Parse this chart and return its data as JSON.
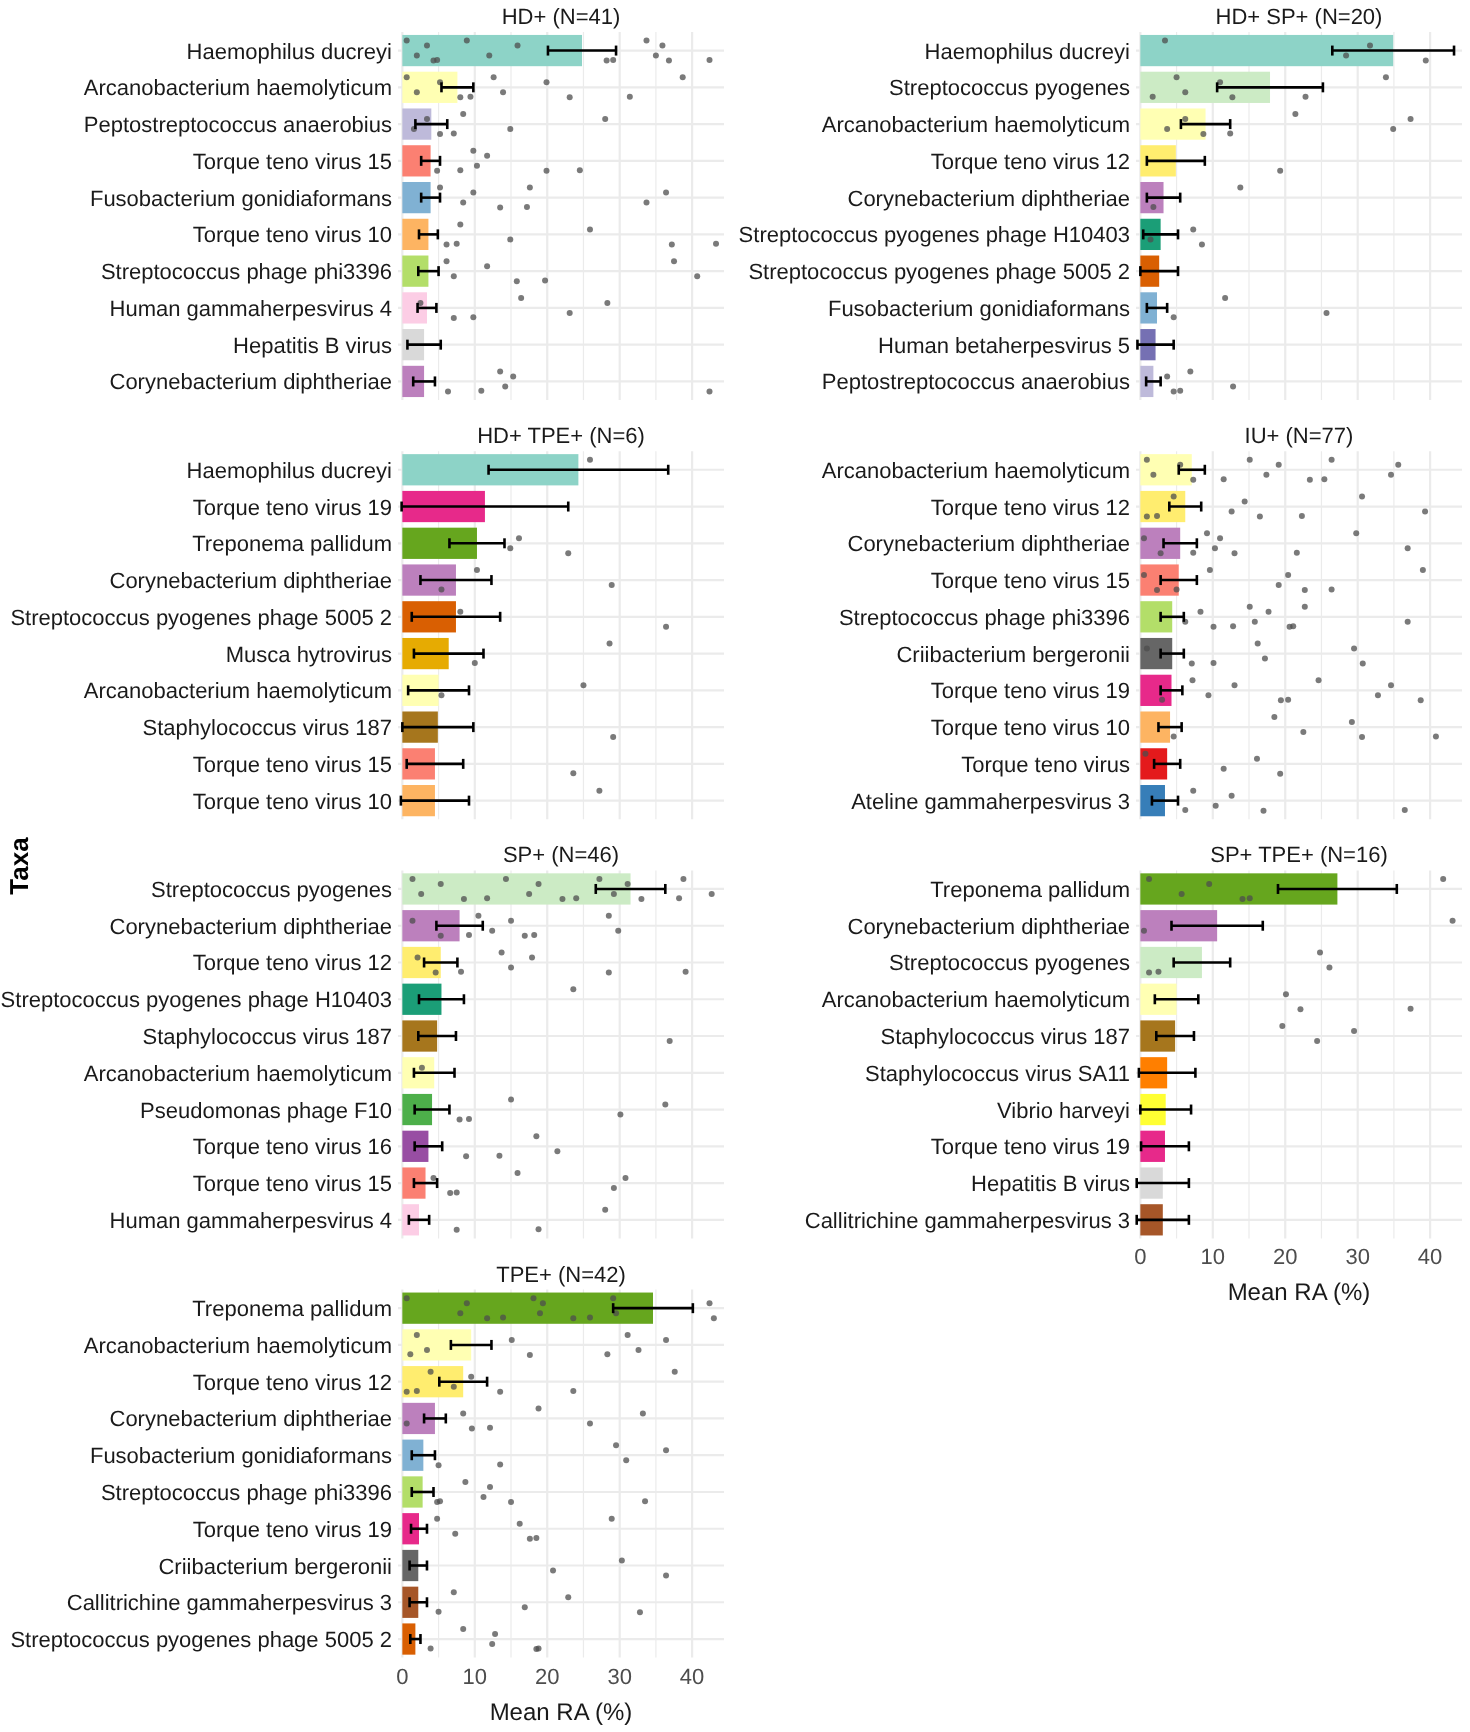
{
  "chart_data": [
    {
      "type": "bar",
      "orientation": "horizontal",
      "title": "HD+ (N=41)",
      "tick_labels": "y",
      "grid": true,
      "xlim": [
        -0.6,
        44.4
      ],
      "xticks": [
        0,
        {
          "value": 5,
          "label": null
        },
        10,
        {
          "value": 15,
          "label": null
        },
        20,
        {
          "value": 25,
          "label": null
        },
        30,
        {
          "value": 35,
          "label": null
        },
        40
      ],
      "categories": [
        "Haemophilus ducreyi",
        "Arcanobacterium haemolyticum",
        "Peptostreptococcus anaerobius",
        "Torque teno virus 15",
        "Fusobacterium gonidiaformans",
        "Torque teno virus 10",
        "Streptococcus phage phi3396",
        "Human gammaherpesvirus 4",
        "Hepatitis B virus",
        "Corynebacterium diphtheriae"
      ],
      "series": [
        {
          "type": "bar",
          "colors": [
            "#8dd3c7",
            "#ffffb3",
            "#bebada",
            "#fb8072",
            "#80b1d3",
            "#fdb462",
            "#b3de69",
            "#fccde5",
            "#d9d9d9",
            "#bc80bd"
          ],
          "values": [
            24.8,
            7.6,
            4.0,
            3.9,
            3.9,
            3.6,
            3.6,
            3.4,
            3.0,
            3.0
          ],
          "errors": [
            4.7,
            2.2,
            2.2,
            1.3,
            1.3,
            1.3,
            1.4,
            1.3,
            2.3,
            1.5
          ]
        },
        {
          "type": "scatter",
          "color": "#4d4d4d",
          "x": [
            "Haemophilus ducreyi",
            "Haemophilus ducreyi",
            "Haemophilus ducreyi",
            "Haemophilus ducreyi",
            "Haemophilus ducreyi",
            "Haemophilus ducreyi",
            "Haemophilus ducreyi",
            "Haemophilus ducreyi",
            "Haemophilus ducreyi",
            "Haemophilus ducreyi",
            "Haemophilus ducreyi",
            "Haemophilus ducreyi",
            "Haemophilus ducreyi",
            "Haemophilus ducreyi",
            "Haemophilus ducreyi",
            "Arcanobacterium haemolyticum",
            "Arcanobacterium haemolyticum",
            "Arcanobacterium haemolyticum",
            "Arcanobacterium haemolyticum",
            "Arcanobacterium haemolyticum",
            "Arcanobacterium haemolyticum",
            "Arcanobacterium haemolyticum",
            "Arcanobacterium haemolyticum",
            "Arcanobacterium haemolyticum",
            "Arcanobacterium haemolyticum",
            "Arcanobacterium haemolyticum",
            "Peptostreptococcus anaerobius",
            "Peptostreptococcus anaerobius",
            "Peptostreptococcus anaerobius",
            "Peptostreptococcus anaerobius",
            "Peptostreptococcus anaerobius",
            "Peptostreptococcus anaerobius",
            "Peptostreptococcus anaerobius",
            "Torque teno virus 15",
            "Torque teno virus 15",
            "Torque teno virus 15",
            "Torque teno virus 15",
            "Torque teno virus 15",
            "Torque teno virus 15",
            "Torque teno virus 15",
            "Fusobacterium gonidiaformans",
            "Fusobacterium gonidiaformans",
            "Fusobacterium gonidiaformans",
            "Fusobacterium gonidiaformans",
            "Fusobacterium gonidiaformans",
            "Fusobacterium gonidiaformans",
            "Fusobacterium gonidiaformans",
            "Fusobacterium gonidiaformans",
            "Torque teno virus 10",
            "Torque teno virus 10",
            "Torque teno virus 10",
            "Torque teno virus 10",
            "Torque teno virus 10",
            "Torque teno virus 10",
            "Torque teno virus 10",
            "Streptococcus phage phi3396",
            "Streptococcus phage phi3396",
            "Streptococcus phage phi3396",
            "Streptococcus phage phi3396",
            "Streptococcus phage phi3396",
            "Streptococcus phage phi3396",
            "Streptococcus phage phi3396",
            "Human gammaherpesvirus 4",
            "Human gammaherpesvirus 4",
            "Human gammaherpesvirus 4",
            "Human gammaherpesvirus 4",
            "Human gammaherpesvirus 4",
            "Human gammaherpesvirus 4",
            "Corynebacterium diphtheriae",
            "Corynebacterium diphtheriae",
            "Corynebacterium diphtheriae",
            "Corynebacterium diphtheriae",
            "Corynebacterium diphtheriae",
            "Corynebacterium diphtheriae"
          ],
          "values": [
            0.6,
            2,
            3.4,
            4.3,
            4.8,
            8.9,
            12,
            15.9,
            28.2,
            29.1,
            33.7,
            35,
            35.9,
            36.8,
            42.4,
            0.6,
            2,
            5.2,
            8,
            9.4,
            12.6,
            13.9,
            19.9,
            23.1,
            31.4,
            38.7,
            1.6,
            3.4,
            5.2,
            7.1,
            8.4,
            14.9,
            28,
            4.8,
            8,
            9.8,
            10.3,
            11.7,
            19.9,
            24.5,
            5.2,
            8.4,
            9.8,
            13.5,
            17.2,
            17.6,
            33.7,
            36.4,
            6.1,
            7.5,
            8,
            14.9,
            25.9,
            37.2,
            43.3,
            6.1,
            7.1,
            11.7,
            15.8,
            19.7,
            37.5,
            40.7,
            2.5,
            7.1,
            9.8,
            16.4,
            23.1,
            28.3,
            6.3,
            10.9,
            13.5,
            14.2,
            15.3,
            42.4
          ]
        }
      ]
    },
    {
      "type": "bar",
      "orientation": "horizontal",
      "title": "HD+ SP+ (N=20)",
      "tick_labels": "y",
      "grid": true,
      "xlim": [
        -0.6,
        44.4
      ],
      "xticks": [
        0,
        {
          "value": 5,
          "label": null
        },
        10,
        {
          "value": 15,
          "label": null
        },
        20,
        {
          "value": 25,
          "label": null
        },
        30,
        {
          "value": 35,
          "label": null
        },
        40
      ],
      "categories": [
        "Haemophilus ducreyi",
        "Streptococcus pyogenes",
        "Arcanobacterium haemolyticum",
        "Torque teno virus 12",
        "Corynebacterium diphtheriae",
        "Streptococcus pyogenes phage H10403",
        "Streptococcus pyogenes phage 5005 2",
        "Fusobacterium gonidiaformans",
        "Human betaherpesvirus 5",
        "Peptostreptococcus anaerobius"
      ],
      "series": [
        {
          "type": "bar",
          "colors": [
            "#8dd3c7",
            "#ccebc5",
            "#ffffb3",
            "#ffed6f",
            "#bc80bd",
            "#1b9e77",
            "#d95f02",
            "#80b1d3",
            "#7570b3",
            "#bebada"
          ],
          "values": [
            34.9,
            17.9,
            9.0,
            4.9,
            3.2,
            2.8,
            2.6,
            2.3,
            2.1,
            1.8
          ],
          "errors": [
            8.4,
            7.3,
            3.4,
            4.0,
            2.3,
            2.4,
            2.6,
            1.4,
            2.5,
            1.0
          ]
        },
        {
          "type": "scatter",
          "color": "#4d4d4d",
          "x": [
            "Haemophilus ducreyi",
            "Haemophilus ducreyi",
            "Haemophilus ducreyi",
            "Haemophilus ducreyi",
            "Streptococcus pyogenes",
            "Streptococcus pyogenes",
            "Streptococcus pyogenes",
            "Streptococcus pyogenes",
            "Streptococcus pyogenes",
            "Streptococcus pyogenes",
            "Streptococcus pyogenes",
            "Arcanobacterium haemolyticum",
            "Arcanobacterium haemolyticum",
            "Arcanobacterium haemolyticum",
            "Arcanobacterium haemolyticum",
            "Arcanobacterium haemolyticum",
            "Arcanobacterium haemolyticum",
            "Arcanobacterium haemolyticum",
            "Torque teno virus 12",
            "Corynebacterium diphtheriae",
            "Corynebacterium diphtheriae",
            "Streptococcus pyogenes phage H10403",
            "Streptococcus pyogenes phage H10403",
            "Streptococcus pyogenes phage H10403",
            "Fusobacterium gonidiaformans",
            "Fusobacterium gonidiaformans",
            "Fusobacterium gonidiaformans",
            "Peptostreptococcus anaerobius",
            "Peptostreptococcus anaerobius",
            "Peptostreptococcus anaerobius",
            "Peptostreptococcus anaerobius",
            "Peptostreptococcus anaerobius"
          ],
          "values": [
            3.4,
            28.4,
            31.7,
            39.4,
            1.7,
            5,
            6.2,
            11,
            12.7,
            22.8,
            33.9,
            3.7,
            6.2,
            8.7,
            12.4,
            21.4,
            34.9,
            37.3,
            19.3,
            1.8,
            13.8,
            1.4,
            7.3,
            8.5,
            4.6,
            11.7,
            25.7,
            3.7,
            4.6,
            5.5,
            6.9,
            12.8
          ]
        }
      ]
    },
    {
      "type": "bar",
      "orientation": "horizontal",
      "title": "HD+ TPE+ (N=6)",
      "tick_labels": "y",
      "grid": true,
      "xlim": [
        -0.6,
        44.4
      ],
      "xticks": [
        0,
        {
          "value": 5,
          "label": null
        },
        10,
        {
          "value": 15,
          "label": null
        },
        20,
        {
          "value": 25,
          "label": null
        },
        30,
        {
          "value": 35,
          "label": null
        },
        40
      ],
      "categories": [
        "Haemophilus ducreyi",
        "Torque teno virus 19",
        "Treponema pallidum",
        "Corynebacterium diphtheriae",
        "Streptococcus pyogenes phage 5005 2",
        "Musca hytrovirus",
        "Arcanobacterium haemolyticum",
        "Staphylococcus virus 187",
        "Torque teno virus 15",
        "Torque teno virus 10"
      ],
      "series": [
        {
          "type": "bar",
          "colors": [
            "#8dd3c7",
            "#e7298a",
            "#66a61e",
            "#bc80bd",
            "#d95f02",
            "#e6ab02",
            "#ffffb3",
            "#a6761d",
            "#fb8072",
            "#fdb462"
          ],
          "values": [
            24.3,
            11.4,
            10.3,
            7.4,
            7.4,
            6.4,
            5.0,
            4.9,
            4.5,
            4.5
          ],
          "errors": [
            12.4,
            11.5,
            3.8,
            4.9,
            6.1,
            4.8,
            4.2,
            4.9,
            3.9,
            4.7
          ]
        },
        {
          "type": "scatter",
          "color": "#4d4d4d",
          "x": [
            "Haemophilus ducreyi",
            "Treponema pallidum",
            "Treponema pallidum",
            "Treponema pallidum",
            "Corynebacterium diphtheriae",
            "Corynebacterium diphtheriae",
            "Corynebacterium diphtheriae",
            "Streptococcus pyogenes phage 5005 2",
            "Streptococcus pyogenes phage 5005 2",
            "Musca hytrovirus",
            "Musca hytrovirus",
            "Arcanobacterium haemolyticum",
            "Arcanobacterium haemolyticum",
            "Staphylococcus virus 187",
            "Torque teno virus 15",
            "Torque teno virus 10"
          ],
          "values": [
            25.9,
            14.9,
            16.1,
            22.9,
            5.4,
            10.3,
            28.9,
            8,
            36.4,
            10,
            28.6,
            5.4,
            25,
            29.1,
            23.6,
            27.2
          ]
        }
      ]
    },
    {
      "type": "bar",
      "orientation": "horizontal",
      "title": "IU+ (N=77)",
      "tick_labels": "y",
      "grid": true,
      "xlim": [
        -0.6,
        44.4
      ],
      "xticks": [
        0,
        {
          "value": 5,
          "label": null
        },
        10,
        {
          "value": 15,
          "label": null
        },
        20,
        {
          "value": 25,
          "label": null
        },
        30,
        {
          "value": 35,
          "label": null
        },
        40
      ],
      "categories": [
        "Arcanobacterium haemolyticum",
        "Torque teno virus 12",
        "Corynebacterium diphtheriae",
        "Torque teno virus 15",
        "Streptococcus phage phi3396",
        "Criibacterium bergeronii",
        "Torque teno virus 19",
        "Torque teno virus 10",
        "Torque teno virus",
        "Ateline gammaherpesvirus 3"
      ],
      "series": [
        {
          "type": "bar",
          "colors": [
            "#ffffb3",
            "#ffed6f",
            "#bc80bd",
            "#fb8072",
            "#b3de69",
            "#666666",
            "#e7298a",
            "#fdb462",
            "#e41a1c",
            "#377eb8"
          ],
          "values": [
            7.1,
            6.2,
            5.5,
            5.3,
            4.4,
            4.4,
            4.3,
            4.1,
            3.7,
            3.4
          ],
          "errors": [
            1.8,
            2.2,
            2.3,
            2.5,
            1.6,
            1.6,
            1.5,
            1.6,
            1.8,
            1.8
          ]
        },
        {
          "type": "scatter",
          "color": "#4d4d4d",
          "x": [
            "Arcanobacterium haemolyticum",
            "Arcanobacterium haemolyticum",
            "Arcanobacterium haemolyticum",
            "Arcanobacterium haemolyticum",
            "Arcanobacterium haemolyticum",
            "Arcanobacterium haemolyticum",
            "Arcanobacterium haemolyticum",
            "Arcanobacterium haemolyticum",
            "Arcanobacterium haemolyticum",
            "Arcanobacterium haemolyticum",
            "Arcanobacterium haemolyticum",
            "Arcanobacterium haemolyticum",
            "Arcanobacterium haemolyticum",
            "Torque teno virus 12",
            "Torque teno virus 12",
            "Torque teno virus 12",
            "Torque teno virus 12",
            "Torque teno virus 12",
            "Torque teno virus 12",
            "Torque teno virus 12",
            "Torque teno virus 12",
            "Torque teno virus 12",
            "Corynebacterium diphtheriae",
            "Corynebacterium diphtheriae",
            "Corynebacterium diphtheriae",
            "Corynebacterium diphtheriae",
            "Corynebacterium diphtheriae",
            "Corynebacterium diphtheriae",
            "Corynebacterium diphtheriae",
            "Corynebacterium diphtheriae",
            "Corynebacterium diphtheriae",
            "Corynebacterium diphtheriae",
            "Torque teno virus 15",
            "Torque teno virus 15",
            "Torque teno virus 15",
            "Torque teno virus 15",
            "Torque teno virus 15",
            "Torque teno virus 15",
            "Torque teno virus 15",
            "Torque teno virus 15",
            "Torque teno virus 15",
            "Streptococcus phage phi3396",
            "Streptococcus phage phi3396",
            "Streptococcus phage phi3396",
            "Streptococcus phage phi3396",
            "Streptococcus phage phi3396",
            "Streptococcus phage phi3396",
            "Streptococcus phage phi3396",
            "Streptococcus phage phi3396",
            "Streptococcus phage phi3396",
            "Streptococcus phage phi3396",
            "Streptococcus phage phi3396",
            "Criibacterium bergeronii",
            "Criibacterium bergeronii",
            "Criibacterium bergeronii",
            "Criibacterium bergeronii",
            "Criibacterium bergeronii",
            "Criibacterium bergeronii",
            "Criibacterium bergeronii",
            "Torque teno virus 19",
            "Torque teno virus 19",
            "Torque teno virus 19",
            "Torque teno virus 19",
            "Torque teno virus 19",
            "Torque teno virus 19",
            "Torque teno virus 19",
            "Torque teno virus 19",
            "Torque teno virus 19",
            "Torque teno virus 19",
            "Torque teno virus 10",
            "Torque teno virus 10",
            "Torque teno virus 10",
            "Torque teno virus 10",
            "Torque teno virus 10",
            "Torque teno virus 10",
            "Torque teno virus",
            "Torque teno virus",
            "Torque teno virus",
            "Torque teno virus",
            "Ateline gammaherpesvirus 3",
            "Ateline gammaherpesvirus 3",
            "Ateline gammaherpesvirus 3",
            "Ateline gammaherpesvirus 3",
            "Ateline gammaherpesvirus 3",
            "Ateline gammaherpesvirus 3"
          ],
          "values": [
            0.9,
            1.8,
            5.5,
            7.3,
            11.5,
            15.1,
            17.4,
            19.1,
            23.4,
            25.4,
            26.4,
            34.6,
            35.6,
            0.9,
            2.3,
            4.6,
            12.6,
            14.4,
            16.5,
            22.3,
            30.6,
            39.3,
            0.5,
            2.8,
            7.3,
            9.2,
            10.3,
            11,
            13,
            21.6,
            29.8,
            36.9,
            0.5,
            2.3,
            5,
            9.6,
            19.1,
            20.4,
            22.7,
            26.4,
            39,
            6.2,
            8.3,
            10.1,
            12.8,
            15.1,
            15.8,
            17.7,
            20.6,
            21.1,
            22.7,
            36.9,
            0.9,
            7.1,
            10.1,
            16.2,
            17.2,
            29.5,
            30.7,
            3,
            7.2,
            9.4,
            13,
            19.4,
            20.4,
            24.6,
            32.8,
            34.6,
            38.7,
            4.6,
            18.5,
            22.5,
            29.2,
            30.6,
            40.8,
            0.7,
            11.5,
            16.1,
            19.3,
            6.2,
            7.3,
            10.4,
            12.6,
            17,
            36.5
          ]
        }
      ]
    },
    {
      "type": "bar",
      "orientation": "horizontal",
      "title": "SP+ (N=46)",
      "ylabel": "Taxa",
      "tick_labels": "y",
      "grid": true,
      "xlim": [
        -0.6,
        44.4
      ],
      "xticks": [
        0,
        {
          "value": 5,
          "label": null
        },
        10,
        {
          "value": 15,
          "label": null
        },
        20,
        {
          "value": 25,
          "label": null
        },
        30,
        {
          "value": 35,
          "label": null
        },
        40
      ],
      "categories": [
        "Streptococcus pyogenes",
        "Corynebacterium diphtheriae",
        "Torque teno virus 12",
        "Streptococcus pyogenes phage H10403",
        "Staphylococcus virus 187",
        "Arcanobacterium haemolyticum",
        "Pseudomonas phage F10",
        "Torque teno virus 16",
        "Torque teno virus 15",
        "Human gammaherpesvirus 4"
      ],
      "series": [
        {
          "type": "bar",
          "colors": [
            "#ccebc5",
            "#bc80bd",
            "#ffed6f",
            "#1b9e77",
            "#a6761d",
            "#ffffb3",
            "#4daf4a",
            "#984ea3",
            "#fb8072",
            "#fccde5"
          ],
          "values": [
            31.5,
            7.9,
            5.3,
            5.4,
            4.8,
            4.4,
            4.1,
            3.6,
            3.2,
            2.3
          ],
          "errors": [
            4.8,
            3.2,
            2.3,
            3.1,
            2.6,
            2.8,
            2.4,
            1.9,
            1.6,
            1.4
          ]
        },
        {
          "type": "scatter",
          "color": "#4d4d4d",
          "x": [
            "Streptococcus pyogenes",
            "Streptococcus pyogenes",
            "Streptococcus pyogenes",
            "Streptococcus pyogenes",
            "Streptococcus pyogenes",
            "Streptococcus pyogenes",
            "Streptococcus pyogenes",
            "Streptococcus pyogenes",
            "Streptococcus pyogenes",
            "Streptococcus pyogenes",
            "Streptococcus pyogenes",
            "Streptococcus pyogenes",
            "Streptococcus pyogenes",
            "Streptococcus pyogenes",
            "Streptococcus pyogenes",
            "Streptococcus pyogenes",
            "Streptococcus pyogenes",
            "Corynebacterium diphtheriae",
            "Corynebacterium diphtheriae",
            "Corynebacterium diphtheriae",
            "Corynebacterium diphtheriae",
            "Corynebacterium diphtheriae",
            "Corynebacterium diphtheriae",
            "Corynebacterium diphtheriae",
            "Corynebacterium diphtheriae",
            "Corynebacterium diphtheriae",
            "Corynebacterium diphtheriae",
            "Torque teno virus 12",
            "Torque teno virus 12",
            "Torque teno virus 12",
            "Torque teno virus 12",
            "Torque teno virus 12",
            "Torque teno virus 12",
            "Torque teno virus 12",
            "Torque teno virus 12",
            "Streptococcus pyogenes phage H10403",
            "Staphylococcus virus 187",
            "Arcanobacterium haemolyticum",
            "Pseudomonas phage F10",
            "Pseudomonas phage F10",
            "Pseudomonas phage F10",
            "Pseudomonas phage F10",
            "Pseudomonas phage F10",
            "Torque teno virus 16",
            "Torque teno virus 16",
            "Torque teno virus 16",
            "Torque teno virus 16",
            "Torque teno virus 15",
            "Torque teno virus 15",
            "Torque teno virus 15",
            "Torque teno virus 15",
            "Torque teno virus 15",
            "Torque teno virus 15",
            "Human gammaherpesvirus 4",
            "Human gammaherpesvirus 4",
            "Human gammaherpesvirus 4"
          ],
          "values": [
            1.4,
            2.6,
            5.3,
            8.5,
            11.7,
            14.3,
            17.5,
            18.8,
            22.1,
            24,
            27.2,
            29.2,
            31.1,
            33,
            38.2,
            38.8,
            42.7,
            1.4,
            5.3,
            9.2,
            10.5,
            12.4,
            15,
            16.9,
            18.2,
            28.5,
            29.8,
            2.1,
            4.6,
            8.1,
            13.7,
            15,
            17.9,
            28.5,
            39.1,
            23.6,
            36.9,
            2.7,
            7.9,
            9.2,
            15,
            30.1,
            36.3,
            8.8,
            13.4,
            18.5,
            21.4,
            4.3,
            6.6,
            7.5,
            15.9,
            29.2,
            30.8,
            7.5,
            18.8,
            28
          ]
        }
      ]
    },
    {
      "type": "bar",
      "orientation": "horizontal",
      "title": "SP+ TPE+ (N=16)",
      "xlabel": "Mean RA (%)",
      "grid": true,
      "xlim": [
        -0.6,
        44.4
      ],
      "xticks": [
        0,
        {
          "value": 5,
          "label": null
        },
        10,
        {
          "value": 15,
          "label": null
        },
        20,
        {
          "value": 25,
          "label": null
        },
        30,
        {
          "value": 35,
          "label": null
        },
        40
      ],
      "categories": [
        "Treponema pallidum",
        "Corynebacterium diphtheriae",
        "Streptococcus pyogenes",
        "Arcanobacterium haemolyticum",
        "Staphylococcus virus 187",
        "Staphylococcus virus SA11",
        "Vibrio harveyi",
        "Torque teno virus 19",
        "Hepatitis B virus",
        "Callitrichine gammaherpesvirus 3"
      ],
      "series": [
        {
          "type": "bar",
          "colors": [
            "#66a61e",
            "#bc80bd",
            "#ccebc5",
            "#ffffb3",
            "#a6761d",
            "#ff7f00",
            "#ffff33",
            "#e7298a",
            "#d9d9d9",
            "#a65628"
          ],
          "values": [
            27.2,
            10.6,
            8.5,
            5.0,
            4.8,
            3.7,
            3.5,
            3.4,
            3.1,
            3.1
          ],
          "errors": [
            8.2,
            6.3,
            3.9,
            3.0,
            2.6,
            3.9,
            3.5,
            3.3,
            3.6,
            3.6
          ]
        },
        {
          "type": "scatter",
          "color": "#4d4d4d",
          "x": [
            "Treponema pallidum",
            "Treponema pallidum",
            "Treponema pallidum",
            "Treponema pallidum",
            "Treponema pallidum",
            "Treponema pallidum",
            "Corynebacterium diphtheriae",
            "Corynebacterium diphtheriae",
            "Streptococcus pyogenes",
            "Streptococcus pyogenes",
            "Streptococcus pyogenes",
            "Streptococcus pyogenes",
            "Arcanobacterium haemolyticum",
            "Arcanobacterium haemolyticum",
            "Arcanobacterium haemolyticum",
            "Staphylococcus virus 187",
            "Staphylococcus virus 187",
            "Staphylococcus virus 187"
          ],
          "values": [
            1.2,
            5.7,
            9.5,
            14.1,
            15.1,
            41.8,
            0.5,
            43.1,
            1.2,
            2.5,
            24.8,
            26.1,
            20.1,
            22.1,
            37.3,
            19.6,
            24.4,
            29.5
          ]
        }
      ]
    },
    {
      "type": "bar",
      "orientation": "horizontal",
      "title": "TPE+ (N=42)",
      "xlabel": "Mean RA (%)",
      "grid": true,
      "xlim": [
        -0.6,
        44.4
      ],
      "xticks": [
        0,
        {
          "value": 5,
          "label": null
        },
        10,
        {
          "value": 15,
          "label": null
        },
        20,
        {
          "value": 25,
          "label": null
        },
        30,
        {
          "value": 35,
          "label": null
        },
        40
      ],
      "categories": [
        "Treponema pallidum",
        "Arcanobacterium haemolyticum",
        "Torque teno virus 12",
        "Corynebacterium diphtheriae",
        "Fusobacterium gonidiaformans",
        "Streptococcus phage phi3396",
        "Torque teno virus 19",
        "Criibacterium bergeronii",
        "Callitrichine gammaherpesvirus 3",
        "Streptococcus pyogenes phage 5005 2"
      ],
      "series": [
        {
          "type": "bar",
          "colors": [
            "#66a61e",
            "#ffffb3",
            "#ffed6f",
            "#bc80bd",
            "#80b1d3",
            "#b3de69",
            "#e7298a",
            "#666666",
            "#a65628",
            "#d95f02"
          ],
          "values": [
            34.6,
            9.5,
            8.4,
            4.5,
            2.9,
            2.8,
            2.3,
            2.2,
            2.2,
            1.8
          ],
          "errors": [
            5.5,
            2.8,
            3.3,
            1.5,
            1.6,
            1.5,
            1.1,
            1.2,
            1.2,
            0.7
          ]
        },
        {
          "type": "scatter",
          "color": "#4d4d4d",
          "x": [
            "Treponema pallidum",
            "Treponema pallidum",
            "Treponema pallidum",
            "Treponema pallidum",
            "Treponema pallidum",
            "Treponema pallidum",
            "Treponema pallidum",
            "Treponema pallidum",
            "Treponema pallidum",
            "Treponema pallidum",
            "Treponema pallidum",
            "Treponema pallidum",
            "Treponema pallidum",
            "Treponema pallidum",
            "Arcanobacterium haemolyticum",
            "Arcanobacterium haemolyticum",
            "Arcanobacterium haemolyticum",
            "Arcanobacterium haemolyticum",
            "Arcanobacterium haemolyticum",
            "Arcanobacterium haemolyticum",
            "Arcanobacterium haemolyticum",
            "Arcanobacterium haemolyticum",
            "Arcanobacterium haemolyticum",
            "Torque teno virus 12",
            "Torque teno virus 12",
            "Torque teno virus 12",
            "Torque teno virus 12",
            "Torque teno virus 12",
            "Torque teno virus 12",
            "Torque teno virus 12",
            "Torque teno virus 12",
            "Corynebacterium diphtheriae",
            "Corynebacterium diphtheriae",
            "Corynebacterium diphtheriae",
            "Corynebacterium diphtheriae",
            "Corynebacterium diphtheriae",
            "Corynebacterium diphtheriae",
            "Corynebacterium diphtheriae",
            "Fusobacterium gonidiaformans",
            "Fusobacterium gonidiaformans",
            "Fusobacterium gonidiaformans",
            "Fusobacterium gonidiaformans",
            "Fusobacterium gonidiaformans",
            "Streptococcus phage phi3396",
            "Streptococcus phage phi3396",
            "Streptococcus phage phi3396",
            "Streptococcus phage phi3396",
            "Streptococcus phage phi3396",
            "Streptococcus phage phi3396",
            "Streptococcus phage phi3396",
            "Torque teno virus 19",
            "Torque teno virus 19",
            "Torque teno virus 19",
            "Torque teno virus 19",
            "Torque teno virus 19",
            "Torque teno virus 19",
            "Criibacterium bergeronii",
            "Criibacterium bergeronii",
            "Criibacterium bergeronii",
            "Callitrichine gammaherpesvirus 3",
            "Callitrichine gammaherpesvirus 3",
            "Callitrichine gammaherpesvirus 3",
            "Callitrichine gammaherpesvirus 3",
            "Callitrichine gammaherpesvirus 3",
            "Streptococcus pyogenes phage 5005 2",
            "Streptococcus pyogenes phage 5005 2",
            "Streptococcus pyogenes phage 5005 2",
            "Streptococcus pyogenes phage 5005 2",
            "Streptococcus pyogenes phage 5005 2",
            "Streptococcus pyogenes phage 5005 2"
          ],
          "values": [
            0.6,
            8,
            8.9,
            11.7,
            13.9,
            18.1,
            19,
            19.4,
            23.6,
            25.9,
            29.1,
            29.5,
            42.4,
            43,
            1.1,
            2,
            3.4,
            15.1,
            17.6,
            28.3,
            31.1,
            32.6,
            36.4,
            0.6,
            2,
            3.9,
            7.1,
            9.5,
            13.5,
            23.6,
            37.6,
            0.6,
            8.4,
            9.6,
            12.1,
            18.8,
            25.9,
            33.2,
            5,
            13.5,
            29.5,
            30.9,
            36.4,
            4.8,
            5.2,
            8.7,
            11.2,
            12.1,
            15,
            33.5,
            4.8,
            7.3,
            16.2,
            17.6,
            18.5,
            28.9,
            20.8,
            30.3,
            36.4,
            5,
            7.1,
            16.9,
            22.9,
            32.8,
            3.9,
            8.4,
            12.4,
            12.8,
            18.5,
            18.8
          ]
        }
      ]
    }
  ]
}
